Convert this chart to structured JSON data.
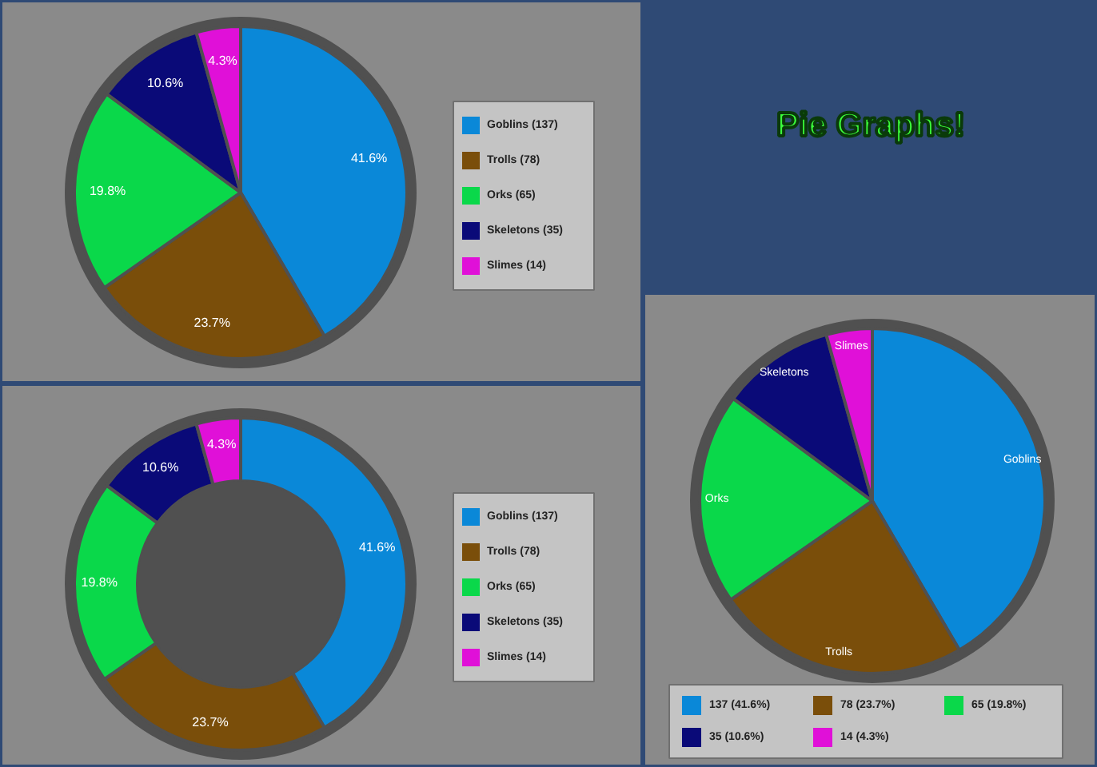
{
  "chart_data": [
    {
      "type": "pie",
      "categories": [
        "Goblins (137)",
        "Trolls (78)",
        "Orks (65)",
        "Skeletons (35)",
        "Slimes (14)"
      ],
      "values": [
        41.6,
        23.7,
        19.8,
        10.6,
        4.3
      ],
      "colors": [
        "#0a88d8",
        "#7a4e0a",
        "#0ad84a",
        "#0a0a78",
        "#e010d8"
      ],
      "value_labels": [
        "41.6%",
        "23.7%",
        "19.8%",
        "10.6%",
        "4.3%"
      ],
      "legend": "right"
    },
    {
      "type": "donut",
      "categories": [
        "Goblins (137)",
        "Trolls (78)",
        "Orks (65)",
        "Skeletons (35)",
        "Slimes (14)"
      ],
      "values": [
        41.6,
        23.7,
        19.8,
        10.6,
        4.3
      ],
      "colors": [
        "#0a88d8",
        "#7a4e0a",
        "#0ad84a",
        "#0a0a78",
        "#e010d8"
      ],
      "value_labels": [
        "41.6%",
        "23.7%",
        "19.8%",
        "10.6%",
        "4.3%"
      ],
      "legend": "right"
    },
    {
      "type": "pie",
      "title": "Pie Graphs!",
      "categories": [
        "137 (41.6%)",
        "78 (23.7%)",
        "65 (19.8%)",
        "35 (10.6%)",
        "14 (4.3%)"
      ],
      "values": [
        41.6,
        23.7,
        19.8,
        10.6,
        4.3
      ],
      "colors": [
        "#0a88d8",
        "#7a4e0a",
        "#0ad84a",
        "#0a0a78",
        "#e010d8"
      ],
      "value_labels": [
        "Goblins",
        "Trolls",
        "Orks",
        "Skeletons",
        "Slimes"
      ],
      "legend": "bottom"
    }
  ]
}
